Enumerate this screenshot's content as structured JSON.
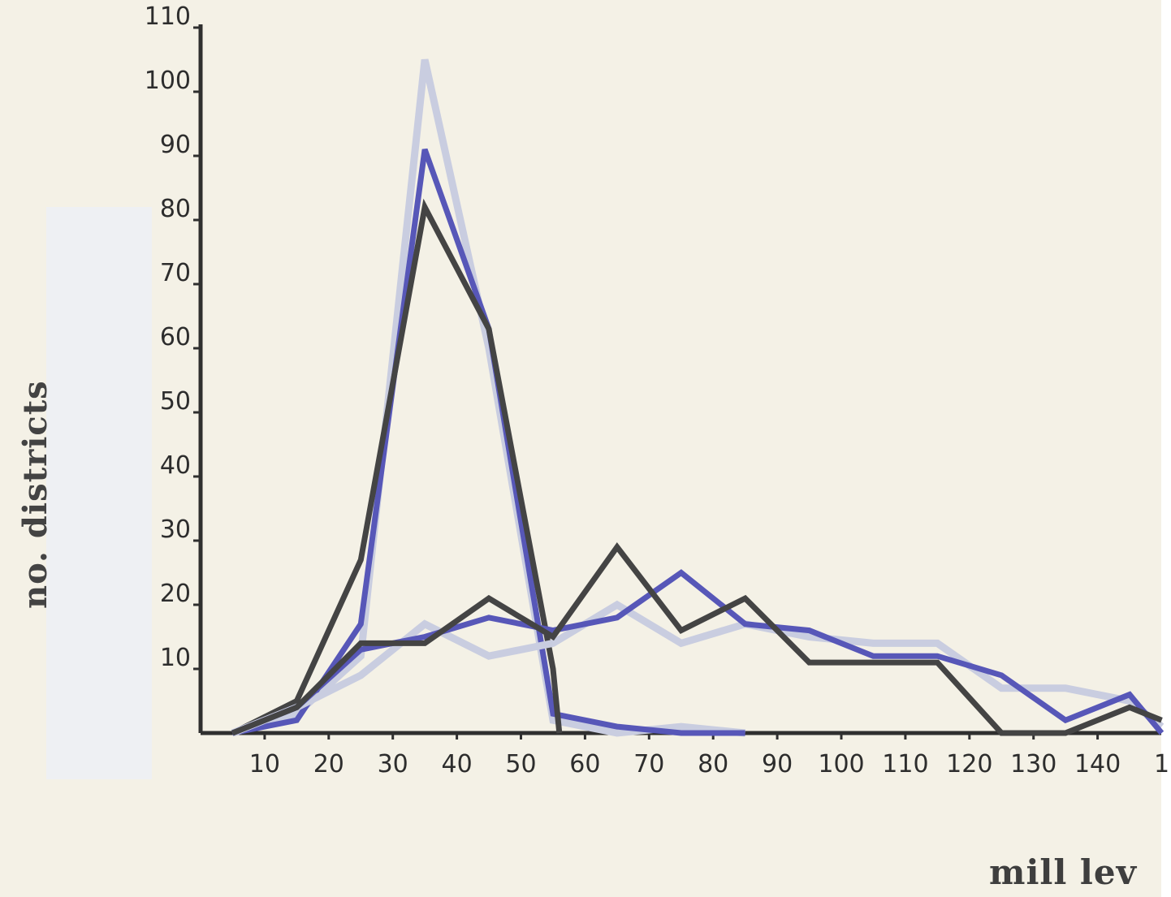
{
  "chart_data": {
    "type": "line",
    "title": "",
    "xlabel": "mill lev",
    "ylabel": "no. districts",
    "xlim": [
      0,
      150
    ],
    "ylim": [
      0,
      110
    ],
    "x_ticks": [
      "10",
      "20",
      "30",
      "40",
      "50",
      "60",
      "70",
      "80",
      "90",
      "100",
      "110",
      "120",
      "130",
      "140",
      "1"
    ],
    "y_ticks": [
      "10",
      "20",
      "30",
      "40",
      "50",
      "60",
      "70",
      "80",
      "90",
      "100",
      "110"
    ],
    "series": [
      {
        "color": "#c9cde0",
        "x": [
          5,
          15,
          25,
          35,
          45,
          55,
          65,
          75,
          85
        ],
        "y": [
          0,
          3,
          12,
          105,
          60,
          2,
          0,
          1,
          0
        ]
      },
      {
        "color": "#5757b8",
        "x": [
          5,
          15,
          25,
          35,
          45,
          55,
          65,
          75,
          85
        ],
        "y": [
          0,
          2,
          17,
          91,
          63,
          3,
          1,
          0,
          0
        ]
      },
      {
        "color": "#444444",
        "x": [
          5,
          15,
          25,
          35,
          45,
          55,
          56
        ],
        "y": [
          0,
          5,
          27,
          82,
          63,
          10,
          0
        ]
      },
      {
        "color": "#c9cde0",
        "x": [
          5,
          15,
          25,
          35,
          45,
          55,
          65,
          75,
          85,
          95,
          105,
          115,
          125,
          135,
          145,
          150
        ],
        "y": [
          0,
          4,
          9,
          17,
          12,
          14,
          20,
          14,
          17,
          15,
          14,
          14,
          7,
          7,
          5,
          1
        ]
      },
      {
        "color": "#5757b8",
        "x": [
          5,
          15,
          25,
          35,
          45,
          55,
          65,
          75,
          85,
          95,
          105,
          115,
          125,
          135,
          145,
          150
        ],
        "y": [
          0,
          4,
          13,
          15,
          18,
          16,
          18,
          25,
          17,
          16,
          12,
          12,
          9,
          2,
          6,
          0
        ]
      },
      {
        "color": "#444444",
        "x": [
          5,
          15,
          25,
          35,
          45,
          55,
          65,
          75,
          85,
          95,
          105,
          115,
          125,
          135,
          145,
          150
        ],
        "y": [
          0,
          4,
          14,
          14,
          21,
          15,
          29,
          16,
          21,
          11,
          11,
          11,
          0,
          0,
          4,
          2
        ]
      }
    ]
  }
}
